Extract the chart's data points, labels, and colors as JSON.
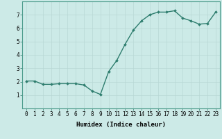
{
  "x": [
    0,
    1,
    2,
    3,
    4,
    5,
    6,
    7,
    8,
    9,
    10,
    11,
    12,
    13,
    14,
    15,
    16,
    17,
    18,
    19,
    20,
    21,
    22,
    23
  ],
  "y": [
    2.05,
    2.05,
    1.8,
    1.8,
    1.85,
    1.85,
    1.85,
    1.75,
    1.3,
    1.05,
    2.75,
    3.6,
    4.8,
    5.85,
    6.55,
    7.0,
    7.2,
    7.2,
    7.3,
    6.75,
    6.55,
    6.3,
    6.35,
    7.2
  ],
  "line_color": "#2e7d6e",
  "marker": "D",
  "marker_size": 2.0,
  "linewidth": 1.0,
  "bg_color": "#cceae7",
  "grid_color": "#b8d8d5",
  "xlabel": "Humidex (Indice chaleur)",
  "ylim": [
    0,
    8
  ],
  "xlim": [
    -0.5,
    23.5
  ],
  "yticks": [
    1,
    2,
    3,
    4,
    5,
    6,
    7
  ],
  "xticks": [
    0,
    1,
    2,
    3,
    4,
    5,
    6,
    7,
    8,
    9,
    10,
    11,
    12,
    13,
    14,
    15,
    16,
    17,
    18,
    19,
    20,
    21,
    22,
    23
  ],
  "xlabel_fontsize": 6.5,
  "tick_fontsize": 5.5,
  "axis_color": "#2e7d6e",
  "spine_color": "#4a9a8a"
}
